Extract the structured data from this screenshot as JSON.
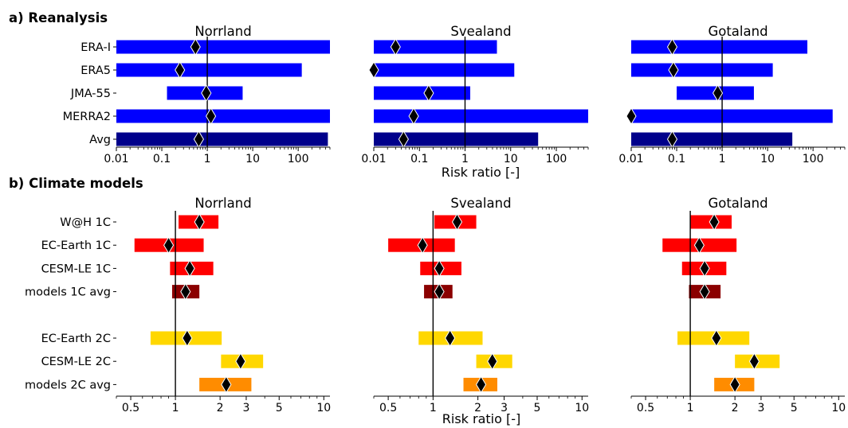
{
  "sections": {
    "a_label": "a) Reanalysis",
    "b_label": "b) Climate models"
  },
  "xlabel": "Risk ratio [-]",
  "chart_data": [
    {
      "type": "range-bar",
      "section": "a",
      "title": "Norrland",
      "xscale": "log",
      "xlim": [
        0.01,
        500
      ],
      "xticks": [
        "0.01",
        "0.1",
        "1",
        "10",
        "100"
      ],
      "categories": [
        "ERA-I",
        "ERA5",
        "JMA-55",
        "MERRA2",
        "Avg"
      ],
      "colors": [
        "#0000ff",
        "#0000ff",
        "#0000ff",
        "#0000ff",
        "#00008b"
      ],
      "lower": [
        0.01,
        0.01,
        0.13,
        0.01,
        0.01
      ],
      "best": [
        0.55,
        0.25,
        0.95,
        1.2,
        0.65
      ],
      "upper": [
        500,
        120,
        6,
        500,
        450
      ],
      "reference_line": 1
    },
    {
      "type": "range-bar",
      "section": "a",
      "title": "Svealand",
      "xscale": "log",
      "xlim": [
        0.01,
        500
      ],
      "xticks": [
        "0.01",
        "0.1",
        "1",
        "10",
        "100"
      ],
      "categories": [
        "ERA-I",
        "ERA5",
        "JMA-55",
        "MERRA2",
        "Avg"
      ],
      "colors": [
        "#0000ff",
        "#0000ff",
        "#0000ff",
        "#0000ff",
        "#00008b"
      ],
      "lower": [
        0.01,
        0.01,
        0.01,
        0.01,
        0.01
      ],
      "best": [
        0.03,
        0.01,
        0.16,
        0.075,
        0.045
      ],
      "upper": [
        5,
        12,
        1.3,
        500,
        40
      ],
      "reference_line": 1
    },
    {
      "type": "range-bar",
      "section": "a",
      "title": "Gotaland",
      "xscale": "log",
      "xlim": [
        0.01,
        500
      ],
      "xticks": [
        "0.01",
        "0.1",
        "1",
        "10",
        "100"
      ],
      "categories": [
        "ERA-I",
        "ERA5",
        "JMA-55",
        "MERRA2",
        "Avg"
      ],
      "colors": [
        "#0000ff",
        "#0000ff",
        "#0000ff",
        "#0000ff",
        "#00008b"
      ],
      "lower": [
        0.01,
        0.01,
        0.1,
        0.01,
        0.01
      ],
      "best": [
        0.08,
        0.085,
        0.8,
        0.01,
        0.08
      ],
      "upper": [
        75,
        13,
        5,
        270,
        35
      ],
      "reference_line": 1
    },
    {
      "type": "range-bar",
      "section": "b",
      "title": "Norrland",
      "xscale": "log",
      "xlim": [
        0.4,
        11
      ],
      "xticks": [
        "0.5",
        "1",
        "2",
        "3",
        "5",
        "10"
      ],
      "categories": [
        "W@H 1C",
        "EC-Earth 1C",
        "CESM-LE 1C",
        "models 1C avg",
        "",
        "EC-Earth 2C",
        "CESM-LE 2C",
        "models 2C avg"
      ],
      "colors": [
        "#ff0000",
        "#ff0000",
        "#ff0000",
        "#8b0000",
        "",
        "#ffd700",
        "#ffd700",
        "#ff8c00"
      ],
      "lower": [
        1.05,
        0.53,
        0.92,
        0.95,
        null,
        0.68,
        2.03,
        1.45
      ],
      "best": [
        1.45,
        0.9,
        1.25,
        1.17,
        null,
        1.2,
        2.75,
        2.2
      ],
      "upper": [
        1.95,
        1.55,
        1.8,
        1.45,
        null,
        2.05,
        3.9,
        3.25
      ],
      "reference_line": 1
    },
    {
      "type": "range-bar",
      "section": "b",
      "title": "Svealand",
      "xscale": "log",
      "xlim": [
        0.4,
        11
      ],
      "xticks": [
        "0.5",
        "1",
        "2",
        "3",
        "5",
        "10"
      ],
      "categories": [
        "W@H 1C",
        "EC-Earth 1C",
        "CESM-LE 1C",
        "models 1C avg",
        "",
        "EC-Earth 2C",
        "CESM-LE 2C",
        "models 2C avg"
      ],
      "colors": [
        "#ff0000",
        "#ff0000",
        "#ff0000",
        "#8b0000",
        "",
        "#ffd700",
        "#ffd700",
        "#ff8c00"
      ],
      "lower": [
        1.02,
        0.5,
        0.82,
        0.87,
        null,
        0.8,
        1.95,
        1.6
      ],
      "best": [
        1.45,
        0.85,
        1.1,
        1.1,
        null,
        1.3,
        2.5,
        2.1
      ],
      "upper": [
        1.95,
        1.4,
        1.55,
        1.35,
        null,
        2.15,
        3.4,
        2.7
      ],
      "reference_line": 1
    },
    {
      "type": "range-bar",
      "section": "b",
      "title": "Gotaland",
      "xscale": "log",
      "xlim": [
        0.4,
        11
      ],
      "xticks": [
        "0.5",
        "1",
        "2",
        "3",
        "5",
        "10"
      ],
      "categories": [
        "W@H 1C",
        "EC-Earth 1C",
        "CESM-LE 1C",
        "models 1C avg",
        "",
        "EC-Earth 2C",
        "CESM-LE 2C",
        "models 2C avg"
      ],
      "colors": [
        "#ff0000",
        "#ff0000",
        "#ff0000",
        "#8b0000",
        "",
        "#ffd700",
        "#ffd700",
        "#ff8c00"
      ],
      "lower": [
        1.0,
        0.65,
        0.88,
        0.98,
        null,
        0.82,
        2.0,
        1.45
      ],
      "best": [
        1.45,
        1.15,
        1.25,
        1.25,
        null,
        1.5,
        2.7,
        2.0
      ],
      "upper": [
        1.9,
        2.05,
        1.75,
        1.6,
        null,
        2.5,
        4.0,
        2.7
      ],
      "reference_line": 1
    }
  ]
}
